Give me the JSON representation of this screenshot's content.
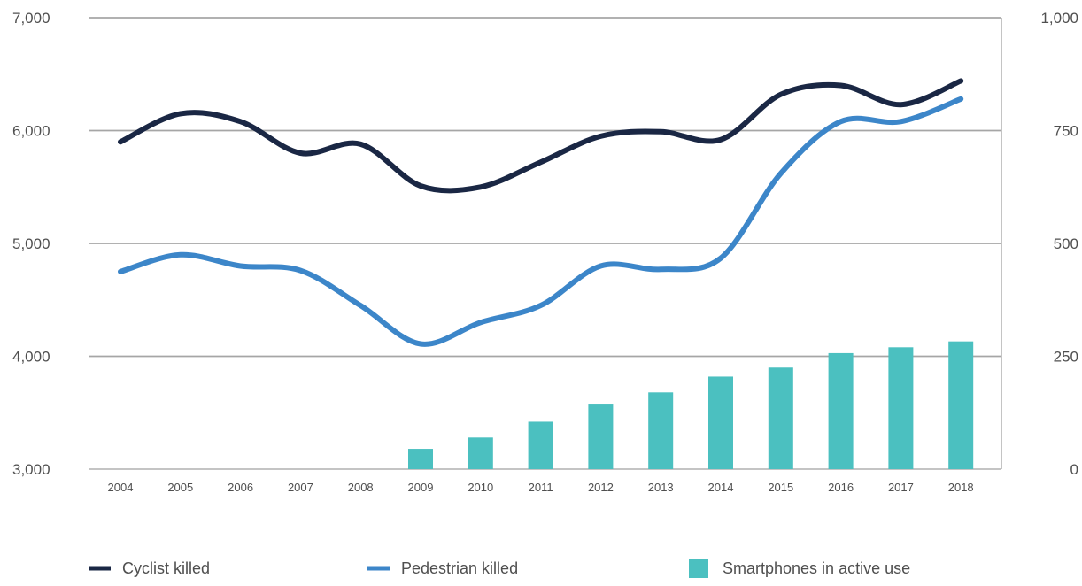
{
  "chart_data": {
    "type": "bar+line",
    "categories": [
      "2004",
      "2005",
      "2006",
      "2007",
      "2008",
      "2009",
      "2010",
      "2011",
      "2012",
      "2013",
      "2014",
      "2015",
      "2016",
      "2017",
      "2018"
    ],
    "y_left": {
      "ticks": [
        "7,000",
        "6,000",
        "5,000",
        "4,000",
        "3,000"
      ],
      "tick_values": [
        7000,
        6000,
        5000,
        4000,
        3000
      ],
      "ylim": [
        3000,
        7000
      ]
    },
    "y_right": {
      "ticks": [
        "1,000",
        "750",
        "500",
        "250",
        "0"
      ],
      "tick_values": [
        1000,
        750,
        500,
        250,
        0
      ],
      "ylim": [
        0,
        1000
      ]
    },
    "grid": true,
    "legend_position": "bottom",
    "series": [
      {
        "name": "Cyclist killed",
        "type": "line",
        "axis": "left",
        "color": "#1a2744",
        "values": [
          5900,
          6150,
          6080,
          5800,
          5880,
          5510,
          5500,
          5720,
          5950,
          5990,
          5920,
          6320,
          6400,
          6230,
          6440
        ]
      },
      {
        "name": "Pedestrian killed",
        "type": "line",
        "axis": "left",
        "color": "#3c86c9",
        "values": [
          4750,
          4900,
          4800,
          4760,
          4450,
          4110,
          4300,
          4450,
          4800,
          4770,
          4870,
          5620,
          6080,
          6080,
          6280
        ]
      },
      {
        "name": "Smartphones in active use",
        "type": "bar",
        "axis": "right",
        "color": "#4bc0c0",
        "values": [
          null,
          null,
          null,
          null,
          null,
          45,
          70,
          105,
          145,
          170,
          205,
          225,
          257,
          270,
          283
        ]
      }
    ]
  }
}
